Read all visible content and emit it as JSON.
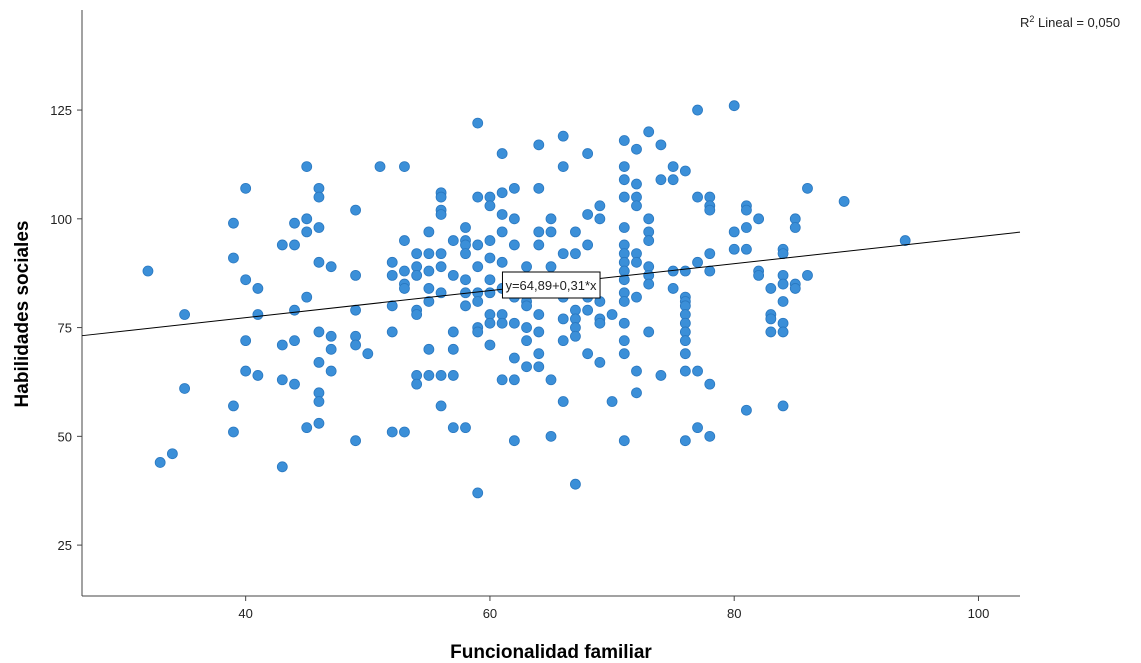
{
  "chart_data": {
    "type": "scatter",
    "x_label": "Funcionalidad familiar",
    "y_label": "Habilidades sociales",
    "color": "#3b8fd8",
    "xlim": [
      26.6,
      103.4
    ],
    "xticks": [
      40,
      60,
      80,
      100
    ],
    "ylim": [
      13.3,
      148
    ],
    "yticks": [
      25,
      50,
      75,
      100,
      125
    ],
    "fit": {
      "intercept": 64.89,
      "slope": 0.31,
      "label": "y=64,89+0,31*x"
    },
    "r2_label": {
      "base": "R",
      "sup": "2",
      "rest": " Lineal = 0,050"
    },
    "x": [
      32,
      33,
      34,
      35,
      35,
      39,
      39,
      39,
      39,
      40,
      40,
      40,
      40,
      41,
      41,
      41,
      43,
      43,
      43,
      43,
      44,
      44,
      44,
      44,
      44,
      45,
      45,
      45,
      45,
      45,
      46,
      46,
      46,
      46,
      46,
      46,
      46,
      46,
      46,
      47,
      47,
      47,
      47,
      49,
      49,
      49,
      49,
      49,
      49,
      50,
      51,
      52,
      52,
      52,
      52,
      52,
      53,
      53,
      53,
      53,
      53,
      53,
      54,
      54,
      54,
      54,
      54,
      54,
      54,
      55,
      55,
      55,
      55,
      55,
      55,
      55,
      56,
      56,
      56,
      56,
      56,
      56,
      56,
      56,
      56,
      57,
      57,
      57,
      57,
      57,
      57,
      58,
      58,
      58,
      58,
      58,
      58,
      58,
      58,
      59,
      59,
      59,
      59,
      59,
      59,
      59,
      59,
      59,
      60,
      60,
      60,
      60,
      60,
      60,
      60,
      60,
      60,
      61,
      61,
      61,
      61,
      61,
      61,
      61,
      61,
      61,
      62,
      62,
      62,
      62,
      62,
      62,
      62,
      62,
      62,
      63,
      63,
      63,
      63,
      63,
      63,
      63,
      64,
      64,
      64,
      64,
      64,
      64,
      64,
      64,
      64,
      65,
      65,
      65,
      65,
      65,
      66,
      66,
      66,
      66,
      66,
      66,
      66,
      67,
      67,
      67,
      67,
      67,
      67,
      67,
      67,
      68,
      68,
      68,
      68,
      68,
      68,
      69,
      69,
      69,
      69,
      69,
      69,
      70,
      70,
      71,
      71,
      71,
      71,
      71,
      71,
      71,
      71,
      71,
      71,
      71,
      71,
      71,
      71,
      71,
      71,
      72,
      72,
      72,
      72,
      72,
      72,
      72,
      72,
      72,
      73,
      73,
      73,
      73,
      73,
      73,
      73,
      73,
      74,
      74,
      74,
      75,
      75,
      75,
      75,
      76,
      76,
      76,
      76,
      76,
      76,
      76,
      76,
      76,
      76,
      76,
      76,
      77,
      77,
      77,
      77,
      77,
      78,
      78,
      78,
      78,
      78,
      78,
      78,
      80,
      80,
      80,
      81,
      81,
      81,
      81,
      81,
      82,
      82,
      82,
      83,
      83,
      83,
      83,
      84,
      84,
      84,
      84,
      84,
      84,
      84,
      84,
      85,
      85,
      85,
      85,
      86,
      86,
      89,
      94
    ],
    "values": [
      88,
      44,
      46,
      78,
      61,
      99,
      91,
      57,
      51,
      107,
      86,
      72,
      65,
      84,
      78,
      64,
      94,
      71,
      63,
      43,
      99,
      94,
      79,
      72,
      62,
      112,
      100,
      97,
      82,
      52,
      107,
      105,
      98,
      90,
      74,
      67,
      60,
      58,
      53,
      89,
      73,
      70,
      65,
      102,
      87,
      79,
      73,
      71,
      49,
      69,
      112,
      90,
      87,
      80,
      74,
      51,
      112,
      95,
      88,
      85,
      84,
      51,
      92,
      89,
      87,
      79,
      78,
      64,
      62,
      97,
      92,
      88,
      84,
      81,
      70,
      64,
      106,
      105,
      102,
      101,
      92,
      89,
      83,
      64,
      57,
      95,
      87,
      74,
      70,
      64,
      52,
      98,
      95,
      94,
      92,
      86,
      83,
      80,
      52,
      122,
      105,
      94,
      89,
      83,
      81,
      75,
      74,
      37,
      105,
      103,
      95,
      91,
      86,
      83,
      78,
      76,
      71,
      115,
      106,
      101,
      97,
      90,
      84,
      78,
      76,
      63,
      107,
      100,
      94,
      86,
      82,
      76,
      68,
      63,
      49,
      89,
      84,
      81,
      80,
      75,
      72,
      66,
      117,
      107,
      97,
      94,
      85,
      78,
      74,
      69,
      66,
      100,
      97,
      89,
      63,
      50,
      119,
      112,
      92,
      82,
      77,
      72,
      58,
      97,
      92,
      86,
      79,
      77,
      75,
      73,
      39,
      115,
      101,
      94,
      82,
      79,
      69,
      103,
      100,
      81,
      77,
      76,
      67,
      78,
      58,
      118,
      112,
      109,
      105,
      98,
      94,
      92,
      90,
      88,
      86,
      83,
      81,
      76,
      72,
      69,
      49,
      116,
      108,
      105,
      103,
      92,
      90,
      82,
      65,
      60,
      120,
      100,
      97,
      95,
      89,
      87,
      85,
      74,
      117,
      109,
      64,
      112,
      109,
      88,
      84,
      111,
      88,
      82,
      81,
      80,
      78,
      76,
      74,
      72,
      69,
      65,
      49,
      125,
      105,
      90,
      65,
      52,
      105,
      103,
      102,
      92,
      88,
      62,
      50,
      126,
      97,
      93,
      103,
      102,
      98,
      93,
      56,
      100,
      88,
      87,
      84,
      78,
      77,
      74,
      93,
      92,
      87,
      85,
      81,
      76,
      74,
      57,
      100,
      98,
      85,
      84,
      107,
      87,
      104,
      95
    ]
  }
}
